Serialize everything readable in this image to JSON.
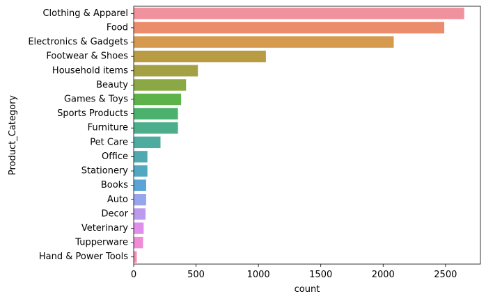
{
  "chart_data": {
    "type": "bar",
    "orientation": "horizontal",
    "title": "",
    "xlabel": "count",
    "ylabel": "Product_Category",
    "xlim": [
      0,
      2780
    ],
    "xticks": [
      0,
      500,
      1000,
      1500,
      2000,
      2500
    ],
    "grid": false,
    "categories": [
      "Clothing & Apparel",
      "Food",
      "Electronics & Gadgets",
      "Footwear & Shoes",
      "Household items",
      "Beauty",
      "Games & Toys",
      "Sports Products",
      "Furniture",
      "Pet Care",
      "Office",
      "Stationery",
      "Books",
      "Auto",
      "Decor",
      "Veterinary",
      "Tupperware",
      "Hand & Power Tools"
    ],
    "values": [
      2650,
      2490,
      2085,
      1060,
      515,
      420,
      380,
      355,
      355,
      215,
      110,
      110,
      100,
      100,
      95,
      80,
      75,
      25
    ],
    "colors": [
      "#f0929e",
      "#eb8c6c",
      "#d59a4e",
      "#b99b43",
      "#a3a144",
      "#8aa844",
      "#5db24a",
      "#4bb26e",
      "#4cae8a",
      "#4eab9f",
      "#50a9b0",
      "#52a7c1",
      "#5aa4d6",
      "#97a5ec",
      "#bc9bef",
      "#df8eea",
      "#f08bd6",
      "#f48fb8"
    ]
  }
}
